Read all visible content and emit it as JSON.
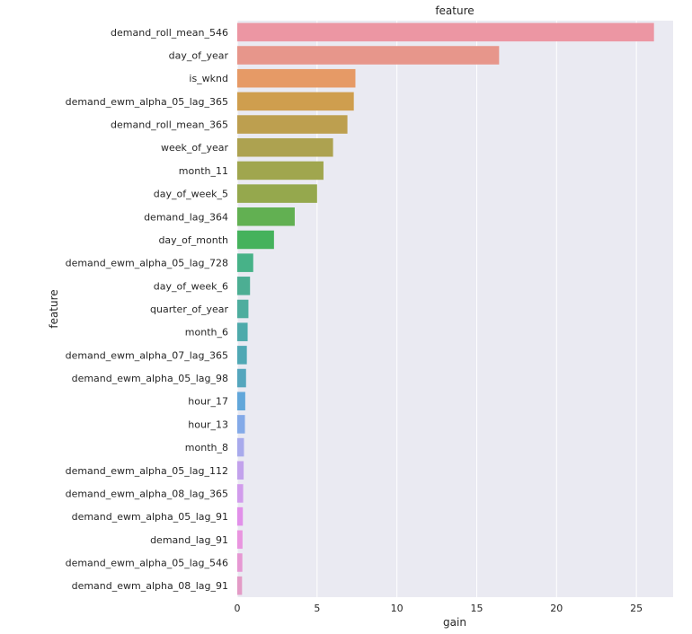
{
  "chart_data": {
    "type": "bar",
    "orientation": "horizontal",
    "title": "feature",
    "xlabel": "gain",
    "ylabel": "feature",
    "xlim": [
      0,
      27.3
    ],
    "xticks": [
      0,
      5,
      10,
      15,
      20,
      25
    ],
    "grid": true,
    "categories": [
      "demand_roll_mean_546",
      "day_of_year",
      "is_wknd",
      "demand_ewm_alpha_05_lag_365",
      "demand_roll_mean_365",
      "week_of_year",
      "month_11",
      "day_of_week_5",
      "demand_lag_364",
      "day_of_month",
      "demand_ewm_alpha_05_lag_728",
      "day_of_week_6",
      "quarter_of_year",
      "month_6",
      "demand_ewm_alpha_07_lag_365",
      "demand_ewm_alpha_05_lag_98",
      "hour_17",
      "hour_13",
      "month_8",
      "demand_ewm_alpha_05_lag_112",
      "demand_ewm_alpha_08_lag_365",
      "demand_ewm_alpha_05_lag_91",
      "demand_lag_91",
      "demand_ewm_alpha_05_lag_546",
      "demand_ewm_alpha_08_lag_91"
    ],
    "values": [
      26.1,
      16.4,
      7.4,
      7.3,
      6.9,
      6.0,
      5.4,
      5.0,
      3.6,
      2.3,
      1.0,
      0.8,
      0.7,
      0.65,
      0.6,
      0.55,
      0.5,
      0.48,
      0.42,
      0.4,
      0.37,
      0.35,
      0.33,
      0.32,
      0.3
    ],
    "colors": [
      "#ec96a3",
      "#e7968b",
      "#e69a66",
      "#cf9e4e",
      "#bd9f4f",
      "#ada250",
      "#a0a64e",
      "#95a84d",
      "#62b052",
      "#45b25c",
      "#47b288",
      "#4cae93",
      "#4ead9e",
      "#4eaaab",
      "#50a8b4",
      "#55a6bd",
      "#62a7da",
      "#84aae8",
      "#a8aaec",
      "#c2a2ec",
      "#d19cec",
      "#e190e9",
      "#e995df",
      "#e698d3",
      "#e39bc6"
    ]
  }
}
